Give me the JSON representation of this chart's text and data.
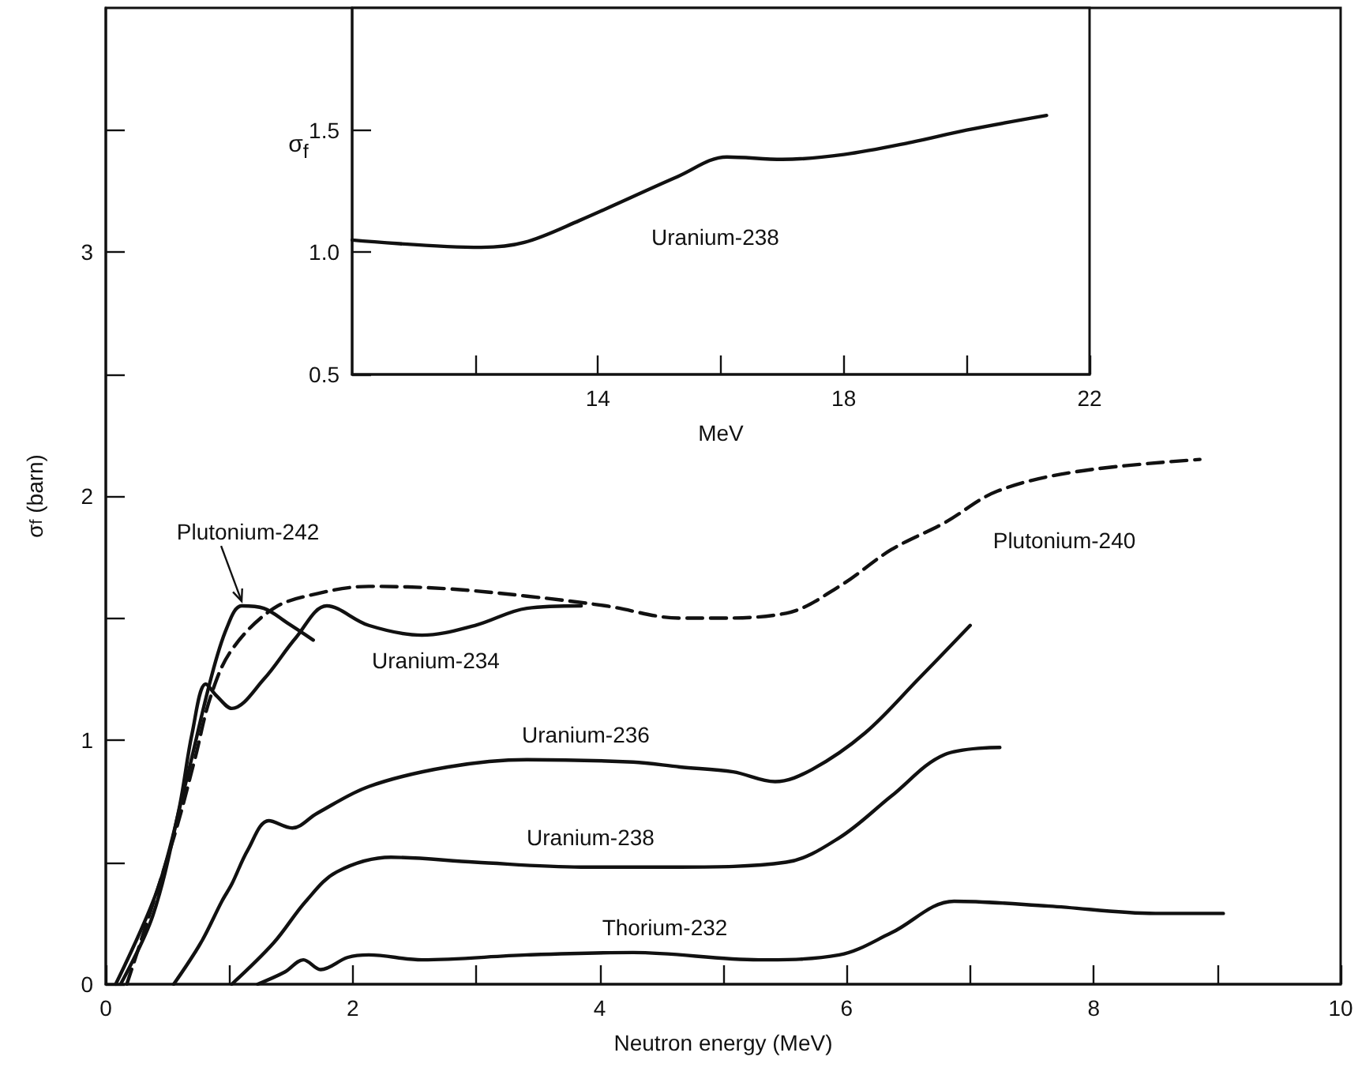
{
  "chart_data": [
    {
      "type": "line",
      "xlabel": "Neutron energy (MeV)",
      "ylabel": "σ$_{f}$ (barn)",
      "xlim": [
        0,
        10
      ],
      "ylim": [
        0,
        4
      ],
      "xticks": [
        0,
        {
          "value": 1,
          "label": null
        },
        2,
        {
          "value": 3,
          "label": null
        },
        4,
        {
          "value": 5,
          "label": null
        },
        6,
        {
          "value": 7,
          "label": null
        },
        8,
        {
          "value": 9,
          "label": null
        },
        10
      ],
      "yticks": [
        0,
        {
          "value": 0.5,
          "label": null
        },
        1,
        {
          "value": 1.5,
          "label": null
        },
        2,
        {
          "value": 2.5,
          "label": null
        },
        3,
        {
          "value": 3.5,
          "label": null
        }
      ],
      "grid": false,
      "marker": "none",
      "series": [
        {
          "color": "#111111",
          "line_style": "solid",
          "x": [
            0.08,
            0.42,
            0.64,
            0.85,
            0.98,
            1.1,
            1.28,
            1.47,
            1.68
          ],
          "values": [
            0,
            0.39,
            0.81,
            1.25,
            1.46,
            1.55,
            1.54,
            1.48,
            1.41
          ]
        },
        {
          "color": "#111111",
          "line_style": "solid",
          "x": [
            0.12,
            0.38,
            0.59,
            0.7,
            0.81,
            0.9,
            1.02,
            1.28,
            1.54,
            1.79,
            2.13,
            2.56,
            2.99,
            3.41,
            3.85
          ],
          "values": [
            0,
            0.28,
            0.71,
            1.03,
            1.23,
            1.18,
            1.13,
            1.25,
            1.42,
            1.55,
            1.47,
            1.43,
            1.47,
            1.54,
            1.55
          ]
        },
        {
          "color": "#111111",
          "line_style": "dashed",
          "x": [
            0.17,
            0.55,
            0.72,
            0.85,
            1.02,
            1.36,
            1.71,
            2.13,
            2.77,
            3.41,
            4.05,
            4.65,
            4.91,
            5.51,
            5.94,
            6.36,
            6.79,
            7.22,
            7.86,
            8.86
          ],
          "values": [
            0,
            0.6,
            0.92,
            1.18,
            1.37,
            1.54,
            1.6,
            1.63,
            1.62,
            1.59,
            1.55,
            1.5,
            1.5,
            1.52,
            1.63,
            1.78,
            1.89,
            2.02,
            2.1,
            2.15
          ]
        },
        {
          "color": "#111111",
          "line_style": "solid",
          "x": [
            0.55,
            0.77,
            0.94,
            1.02,
            1.15,
            1.32,
            1.51,
            1.71,
            2.13,
            2.77,
            3.41,
            4.27,
            4.65,
            5.08,
            5.42,
            5.72,
            6.15,
            6.58,
            7.0
          ],
          "values": [
            0,
            0.17,
            0.34,
            0.41,
            0.55,
            0.67,
            0.64,
            0.7,
            0.81,
            0.89,
            0.92,
            0.91,
            0.89,
            0.87,
            0.83,
            0.88,
            1.03,
            1.25,
            1.47
          ]
        },
        {
          "color": "#111111",
          "line_style": "solid",
          "x": [
            1.02,
            1.36,
            1.62,
            1.87,
            2.31,
            2.99,
            3.85,
            4.65,
            5.51,
            5.94,
            6.36,
            6.79,
            7.24
          ],
          "values": [
            0,
            0.17,
            0.34,
            0.46,
            0.52,
            0.5,
            0.48,
            0.48,
            0.5,
            0.6,
            0.77,
            0.94,
            0.97
          ]
        },
        {
          "color": "#111111",
          "line_style": "solid",
          "x": [
            1.23,
            1.45,
            1.6,
            1.74,
            1.96,
            2.13,
            2.56,
            3.41,
            4.27,
            5.29,
            5.94,
            6.36,
            6.87,
            7.64,
            8.5,
            9.05
          ],
          "values": [
            0,
            0.05,
            0.1,
            0.06,
            0.11,
            0.12,
            0.1,
            0.12,
            0.13,
            0.1,
            0.12,
            0.21,
            0.34,
            0.32,
            0.29,
            0.29
          ]
        }
      ],
      "annotations": [
        {
          "text": "Plutonium-242",
          "x": 1.1,
          "y": 1.55
        },
        "Uranium-234",
        "Uranium-236",
        "Uranium-238",
        "Thorium-232",
        "Plutonium-240"
      ]
    },
    {
      "type": "line",
      "xlabel": "MeV",
      "ylabel": "σ$_{f}$",
      "xlim": [
        10,
        22
      ],
      "ylim": [
        0.5,
        2
      ],
      "xticks": [
        {
          "value": 12,
          "label": null
        },
        14,
        {
          "value": 16,
          "label": null
        },
        18,
        {
          "value": 20,
          "label": null
        },
        22
      ],
      "yticks": [
        0.5,
        {
          "value": 1,
          "label": "1.0"
        },
        1.5
      ],
      "grid": false,
      "marker": "none",
      "series": [
        {
          "color": "#111111",
          "line_style": "solid",
          "x": [
            10,
            12.1,
            12.8,
            13.7,
            15.3,
            16.1,
            17,
            18,
            19.1,
            20,
            21.3
          ],
          "values": [
            1.05,
            1.02,
            1.04,
            1.13,
            1.31,
            1.39,
            1.38,
            1.4,
            1.45,
            1.5,
            1.56
          ]
        }
      ],
      "annotations": [
        "Uranium-238"
      ]
    }
  ]
}
